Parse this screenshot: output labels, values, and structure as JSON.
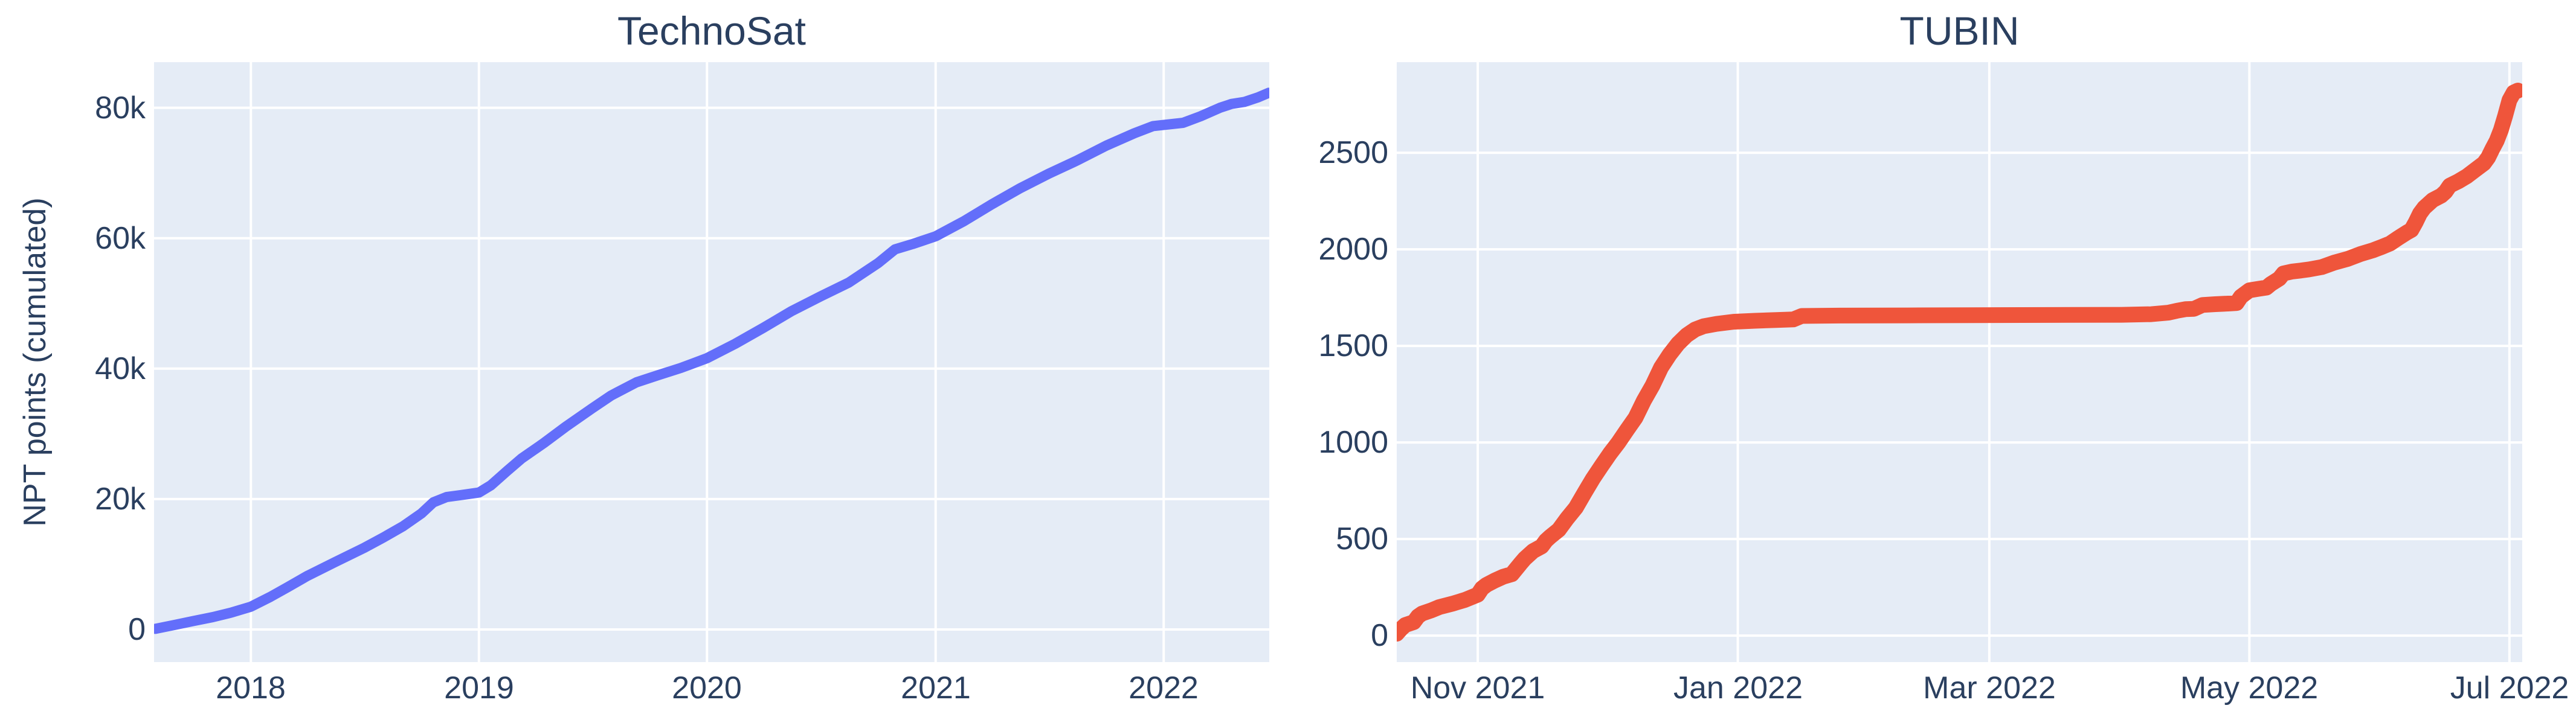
{
  "page_background": "#ffffff",
  "text_color": "#2a3f5f",
  "plot_background": "#e5ecf6",
  "grid_color": "#ffffff",
  "chart_data": [
    {
      "type": "line",
      "title": "TechnoSat",
      "ylabel": "NPT points (cumulated)",
      "line_color": "#636efa",
      "line_width": 17,
      "grid": true,
      "x_range": [
        "2017-07-30",
        "2022-06-19"
      ],
      "y_range": [
        -5000,
        87000
      ],
      "x_ticks": [
        {
          "date": "2018-01-01",
          "label": "2018"
        },
        {
          "date": "2019-01-01",
          "label": "2019"
        },
        {
          "date": "2020-01-01",
          "label": "2020"
        },
        {
          "date": "2021-01-01",
          "label": "2021"
        },
        {
          "date": "2022-01-01",
          "label": "2022"
        }
      ],
      "y_ticks": [
        {
          "value": 0,
          "label": "0"
        },
        {
          "value": 20000,
          "label": "20k"
        },
        {
          "value": 40000,
          "label": "40k"
        },
        {
          "value": 60000,
          "label": "60k"
        },
        {
          "value": 80000,
          "label": "80k"
        }
      ],
      "points": [
        [
          "2017-08-01",
          100
        ],
        [
          "2017-09-01",
          700
        ],
        [
          "2017-10-01",
          1300
        ],
        [
          "2017-11-01",
          1900
        ],
        [
          "2017-12-01",
          2600
        ],
        [
          "2018-01-01",
          3500
        ],
        [
          "2018-02-01",
          5000
        ],
        [
          "2018-03-01",
          6500
        ],
        [
          "2018-04-01",
          8200
        ],
        [
          "2018-05-15",
          10300
        ],
        [
          "2018-07-01",
          12500
        ],
        [
          "2018-08-01",
          14100
        ],
        [
          "2018-09-01",
          15800
        ],
        [
          "2018-10-01",
          17800
        ],
        [
          "2018-10-20",
          19500
        ],
        [
          "2018-11-10",
          20300
        ],
        [
          "2018-12-10",
          20700
        ],
        [
          "2019-01-01",
          21000
        ],
        [
          "2019-01-20",
          22100
        ],
        [
          "2019-02-15",
          24300
        ],
        [
          "2019-03-10",
          26200
        ],
        [
          "2019-04-15",
          28600
        ],
        [
          "2019-05-20",
          31100
        ],
        [
          "2019-07-01",
          33900
        ],
        [
          "2019-08-01",
          35900
        ],
        [
          "2019-09-10",
          37900
        ],
        [
          "2019-10-15",
          39000
        ],
        [
          "2019-11-20",
          40100
        ],
        [
          "2020-01-01",
          41600
        ],
        [
          "2020-02-15",
          43800
        ],
        [
          "2020-04-01",
          46300
        ],
        [
          "2020-05-15",
          48800
        ],
        [
          "2020-07-01",
          51100
        ],
        [
          "2020-08-15",
          53200
        ],
        [
          "2020-10-01",
          56200
        ],
        [
          "2020-10-28",
          58300
        ],
        [
          "2020-11-25",
          59100
        ],
        [
          "2021-01-01",
          60300
        ],
        [
          "2021-02-15",
          62600
        ],
        [
          "2021-04-01",
          65200
        ],
        [
          "2021-05-15",
          67600
        ],
        [
          "2021-07-01",
          69900
        ],
        [
          "2021-08-15",
          71900
        ],
        [
          "2021-10-01",
          74200
        ],
        [
          "2021-11-15",
          76100
        ],
        [
          "2021-12-15",
          77200
        ],
        [
          "2022-02-01",
          77700
        ],
        [
          "2022-03-01",
          78700
        ],
        [
          "2022-04-01",
          80000
        ],
        [
          "2022-04-20",
          80600
        ],
        [
          "2022-05-10",
          80900
        ],
        [
          "2022-06-01",
          81600
        ],
        [
          "2022-06-18",
          82300
        ]
      ]
    },
    {
      "type": "line",
      "title": "TUBIN",
      "ylabel": "",
      "line_color": "#ef553b",
      "line_width": 26,
      "grid": true,
      "x_range": [
        "2021-10-13",
        "2022-07-04"
      ],
      "y_range": [
        -137,
        2969
      ],
      "x_ticks": [
        {
          "date": "2021-11-01",
          "label": "Nov 2021"
        },
        {
          "date": "2022-01-01",
          "label": "Jan 2022"
        },
        {
          "date": "2022-03-01",
          "label": "Mar 2022"
        },
        {
          "date": "2022-05-01",
          "label": "May 2022"
        },
        {
          "date": "2022-07-01",
          "label": "Jul 2022"
        }
      ],
      "y_ticks": [
        {
          "value": 0,
          "label": "0"
        },
        {
          "value": 500,
          "label": "500"
        },
        {
          "value": 1000,
          "label": "1000"
        },
        {
          "value": 1500,
          "label": "1500"
        },
        {
          "value": 2000,
          "label": "2000"
        },
        {
          "value": 2500,
          "label": "2500"
        }
      ],
      "points": [
        [
          "2021-10-13",
          10
        ],
        [
          "2021-10-14",
          35
        ],
        [
          "2021-10-15",
          55
        ],
        [
          "2021-10-17",
          70
        ],
        [
          "2021-10-18",
          100
        ],
        [
          "2021-10-19",
          115
        ],
        [
          "2021-10-21",
          130
        ],
        [
          "2021-10-23",
          148
        ],
        [
          "2021-10-26",
          165
        ],
        [
          "2021-10-29",
          185
        ],
        [
          "2021-11-01",
          212
        ],
        [
          "2021-11-02",
          245
        ],
        [
          "2021-11-03",
          262
        ],
        [
          "2021-11-05",
          285
        ],
        [
          "2021-11-07",
          305
        ],
        [
          "2021-11-09",
          318
        ],
        [
          "2021-11-11",
          372
        ],
        [
          "2021-11-12",
          398
        ],
        [
          "2021-11-14",
          438
        ],
        [
          "2021-11-16",
          462
        ],
        [
          "2021-11-17",
          492
        ],
        [
          "2021-11-18",
          512
        ],
        [
          "2021-11-20",
          548
        ],
        [
          "2021-11-22",
          608
        ],
        [
          "2021-11-24",
          662
        ],
        [
          "2021-11-26",
          738
        ],
        [
          "2021-11-28",
          812
        ],
        [
          "2021-11-30",
          878
        ],
        [
          "2021-12-02",
          942
        ],
        [
          "2021-12-04",
          1000
        ],
        [
          "2021-12-06",
          1065
        ],
        [
          "2021-12-08",
          1128
        ],
        [
          "2021-12-10",
          1218
        ],
        [
          "2021-12-12",
          1295
        ],
        [
          "2021-12-14",
          1388
        ],
        [
          "2021-12-16",
          1455
        ],
        [
          "2021-12-18",
          1512
        ],
        [
          "2021-12-20",
          1555
        ],
        [
          "2021-12-22",
          1585
        ],
        [
          "2021-12-24",
          1602
        ],
        [
          "2021-12-27",
          1614
        ],
        [
          "2021-12-31",
          1625
        ],
        [
          "2022-01-05",
          1630
        ],
        [
          "2022-01-10",
          1634
        ],
        [
          "2022-01-14",
          1637
        ],
        [
          "2022-01-16",
          1655
        ],
        [
          "2022-01-25",
          1657
        ],
        [
          "2022-02-10",
          1658
        ],
        [
          "2022-02-25",
          1659
        ],
        [
          "2022-03-15",
          1660
        ],
        [
          "2022-04-01",
          1661
        ],
        [
          "2022-04-08",
          1664
        ],
        [
          "2022-04-12",
          1672
        ],
        [
          "2022-04-14",
          1682
        ],
        [
          "2022-04-16",
          1690
        ],
        [
          "2022-04-18",
          1692
        ],
        [
          "2022-04-20",
          1712
        ],
        [
          "2022-04-23",
          1716
        ],
        [
          "2022-04-26",
          1719
        ],
        [
          "2022-04-28",
          1722
        ],
        [
          "2022-04-29",
          1755
        ],
        [
          "2022-05-01",
          1788
        ],
        [
          "2022-05-03",
          1795
        ],
        [
          "2022-05-05",
          1802
        ],
        [
          "2022-05-06",
          1820
        ],
        [
          "2022-05-08",
          1848
        ],
        [
          "2022-05-09",
          1875
        ],
        [
          "2022-05-11",
          1885
        ],
        [
          "2022-05-13",
          1890
        ],
        [
          "2022-05-15",
          1896
        ],
        [
          "2022-05-18",
          1908
        ],
        [
          "2022-05-21",
          1932
        ],
        [
          "2022-05-24",
          1950
        ],
        [
          "2022-05-27",
          1975
        ],
        [
          "2022-05-30",
          1995
        ],
        [
          "2022-06-01",
          2012
        ],
        [
          "2022-06-03",
          2030
        ],
        [
          "2022-06-05",
          2060
        ],
        [
          "2022-06-07",
          2088
        ],
        [
          "2022-06-08",
          2100
        ],
        [
          "2022-06-09",
          2140
        ],
        [
          "2022-06-10",
          2185
        ],
        [
          "2022-06-11",
          2215
        ],
        [
          "2022-06-13",
          2255
        ],
        [
          "2022-06-15",
          2278
        ],
        [
          "2022-06-16",
          2298
        ],
        [
          "2022-06-17",
          2330
        ],
        [
          "2022-06-19",
          2352
        ],
        [
          "2022-06-21",
          2378
        ],
        [
          "2022-06-23",
          2412
        ],
        [
          "2022-06-25",
          2445
        ],
        [
          "2022-06-26",
          2475
        ],
        [
          "2022-06-27",
          2520
        ],
        [
          "2022-06-28",
          2562
        ],
        [
          "2022-06-29",
          2618
        ],
        [
          "2022-06-30",
          2692
        ],
        [
          "2022-07-01",
          2772
        ],
        [
          "2022-07-02",
          2812
        ],
        [
          "2022-07-03",
          2822
        ]
      ]
    }
  ]
}
